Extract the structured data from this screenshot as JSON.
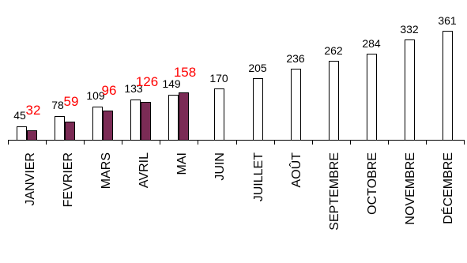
{
  "chart_data": {
    "type": "bar",
    "categories": [
      "JANVIER",
      "FEVRIER",
      "MARS",
      "AVRIL",
      "MAI",
      "JUIN",
      "JUILLET",
      "AOÛT",
      "SEPTEMBRE",
      "OCTOBRE",
      "NOVEMBRE",
      "DÉCEMBRE"
    ],
    "series": [
      {
        "values": [
          45,
          78,
          109,
          133,
          149,
          170,
          205,
          236,
          262,
          284,
          332,
          361
        ],
        "color": "#ffffff",
        "label_color": "#000000"
      },
      {
        "values": [
          32,
          59,
          96,
          126,
          158,
          null,
          null,
          null,
          null,
          null,
          null,
          null
        ],
        "color": "#7b2b55",
        "label_color": "#ff0000"
      }
    ],
    "ylim": [
      0,
      400
    ],
    "grid": false,
    "legend": "none"
  }
}
